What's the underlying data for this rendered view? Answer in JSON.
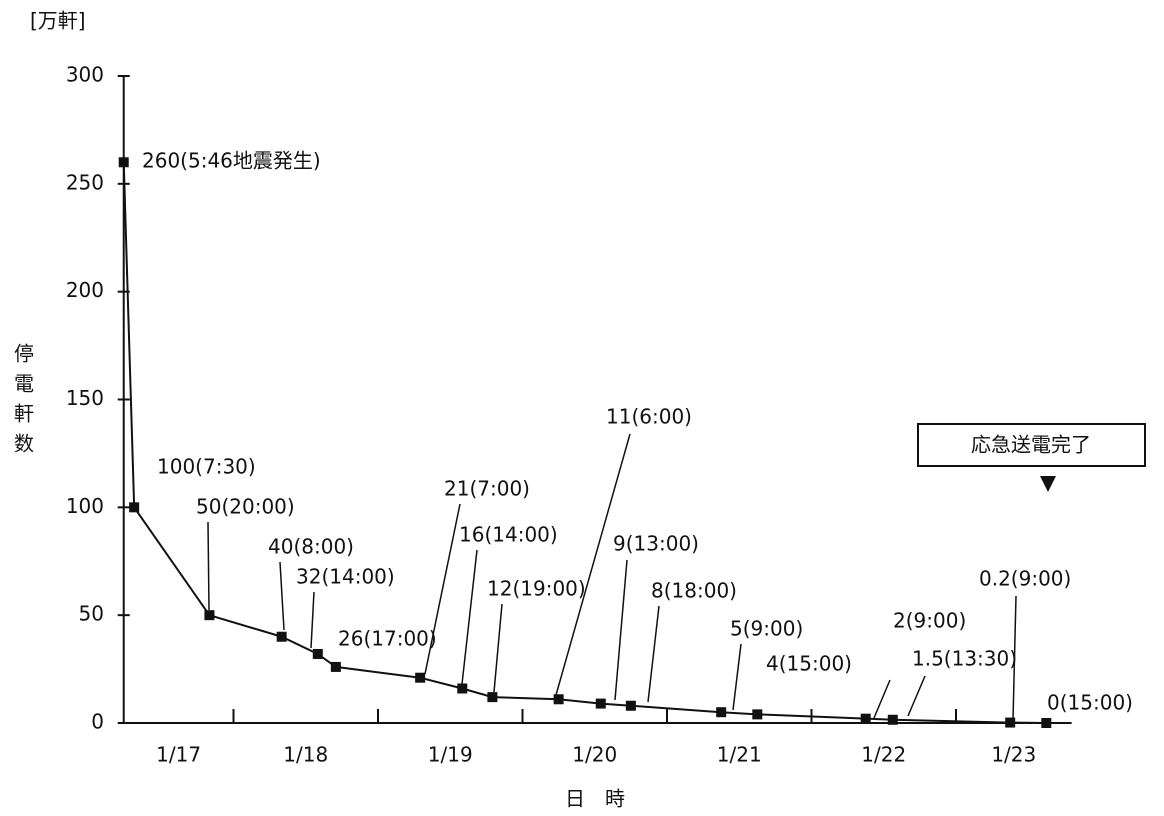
{
  "chart_data": {
    "type": "line",
    "unit_label": "[万軒]",
    "y_label": "停電軒数",
    "x_label": "日　時",
    "days": [
      "1/17",
      "1/18",
      "1/19",
      "1/20",
      "1/21",
      "1/22",
      "1/23"
    ],
    "annotation": "応急送電完了",
    "color": "#111111",
    "ylim": [
      0,
      300
    ],
    "yticks": [
      0,
      50,
      100,
      150,
      200,
      250,
      300
    ],
    "x": [
      "1/17 5:46",
      "1/17 7:30",
      "1/17 20:00",
      "1/18 8:00",
      "1/18 14:00",
      "1/18 17:00",
      "1/19 7:00",
      "1/19 14:00",
      "1/19 19:00",
      "1/20 6:00",
      "1/20 13:00",
      "1/20 18:00",
      "1/21 9:00",
      "1/21 15:00",
      "1/22 9:00",
      "1/22 13:30",
      "1/23 9:00",
      "1/23 15:00"
    ],
    "values": [
      260,
      100,
      50,
      40,
      32,
      26,
      21,
      16,
      12,
      11,
      9,
      8,
      5,
      4,
      2,
      1.5,
      0.2,
      0
    ],
    "value_labels": [
      "260(5:46地震発生)",
      "100(7:30)",
      "50(20:00)",
      "40(8:00)",
      "32(14:00)",
      "26(17:00)",
      "21(7:00)",
      "16(14:00)",
      "12(19:00)",
      "11(6:00)",
      "9(13:00)",
      "8(18:00)",
      "5(9:00)",
      "4(15:00)",
      "2(9:00)",
      "1.5(13:30)",
      "0.2(9:00)",
      "0(15:00)"
    ]
  }
}
